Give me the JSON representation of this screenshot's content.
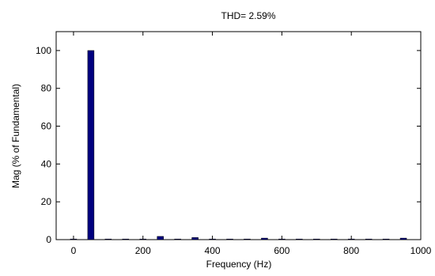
{
  "chart_data": {
    "type": "bar",
    "title": "THD= 2.59%",
    "xlabel": "Frequency (Hz)",
    "ylabel": "Mag (% of Fundamental)",
    "xlim": [
      -50,
      1000
    ],
    "ylim": [
      0,
      110
    ],
    "xticks": [
      "0",
      "200",
      "400",
      "600",
      "800",
      "1000"
    ],
    "xtick_values": [
      0,
      200,
      400,
      600,
      800,
      1000
    ],
    "yticks": [
      "0",
      "20",
      "40",
      "60",
      "80",
      "100"
    ],
    "ytick_values": [
      0,
      20,
      40,
      60,
      80,
      100
    ],
    "bar_color": "#00007f",
    "grid": false,
    "x": [
      0,
      50,
      100,
      150,
      200,
      250,
      300,
      350,
      400,
      450,
      500,
      550,
      600,
      650,
      700,
      750,
      800,
      850,
      900,
      950
    ],
    "values": [
      0.1,
      100,
      0.3,
      0.3,
      0.3,
      1.7,
      0.3,
      1.1,
      0.3,
      0.3,
      0.3,
      0.8,
      0.3,
      0.3,
      0.3,
      0.3,
      0.3,
      0.3,
      0.3,
      0.8
    ]
  }
}
